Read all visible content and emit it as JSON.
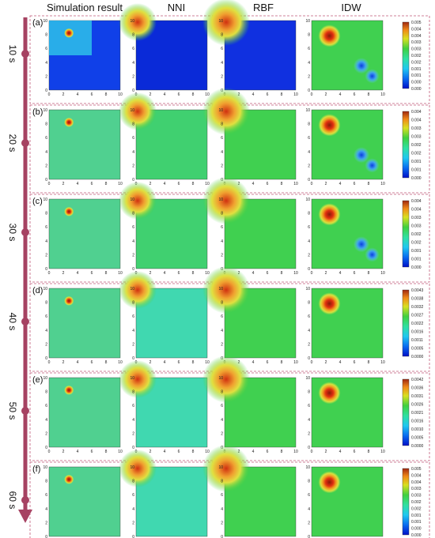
{
  "columns": [
    "Simulation result",
    "NNI",
    "RBF",
    "IDW"
  ],
  "rows": [
    {
      "panel": "(a)",
      "time": "10 s",
      "colorbar": [
        "0.005",
        "0.004",
        "0.004",
        "0.003",
        "0.003",
        "0.002",
        "0.002",
        "0.001",
        "0.001",
        "0.000",
        "0.000"
      ]
    },
    {
      "panel": "(b)",
      "time": "20 s",
      "colorbar": [
        "0.004",
        "0.004",
        "0.003",
        "0.003",
        "0.002",
        "0.002",
        "0.001",
        "0.001",
        "0.000"
      ]
    },
    {
      "panel": "(c)",
      "time": "30 s",
      "colorbar": [
        "0.004",
        "0.004",
        "0.003",
        "0.003",
        "0.002",
        "0.002",
        "0.001",
        "0.001",
        "0.000"
      ]
    },
    {
      "panel": "(d)",
      "time": "40 s",
      "colorbar": [
        "0.0043",
        "0.0038",
        "0.0032",
        "0.0027",
        "0.0022",
        "0.0016",
        "0.0011",
        "0.0005",
        "0.0000"
      ]
    },
    {
      "panel": "(e)",
      "time": "50 s",
      "colorbar": [
        "0.0042",
        "0.0036",
        "0.0031",
        "0.0026",
        "0.0021",
        "0.0016",
        "0.0010",
        "0.0005",
        "0.0000"
      ]
    },
    {
      "panel": "(f)",
      "time": "60 s",
      "colorbar": [
        "0.005",
        "0.004",
        "0.004",
        "0.003",
        "0.003",
        "0.002",
        "0.002",
        "0.001",
        "0.001",
        "0.000",
        "0.000"
      ]
    }
  ],
  "axis_ticks": [
    "0",
    "2",
    "4",
    "6",
    "8",
    "10"
  ],
  "colors": {
    "low": "#0018d8",
    "mid": "#2fd04a",
    "high": "#a8300e",
    "arrow": "#a64262",
    "dot": "#a64262",
    "frame": "#c05878"
  }
}
